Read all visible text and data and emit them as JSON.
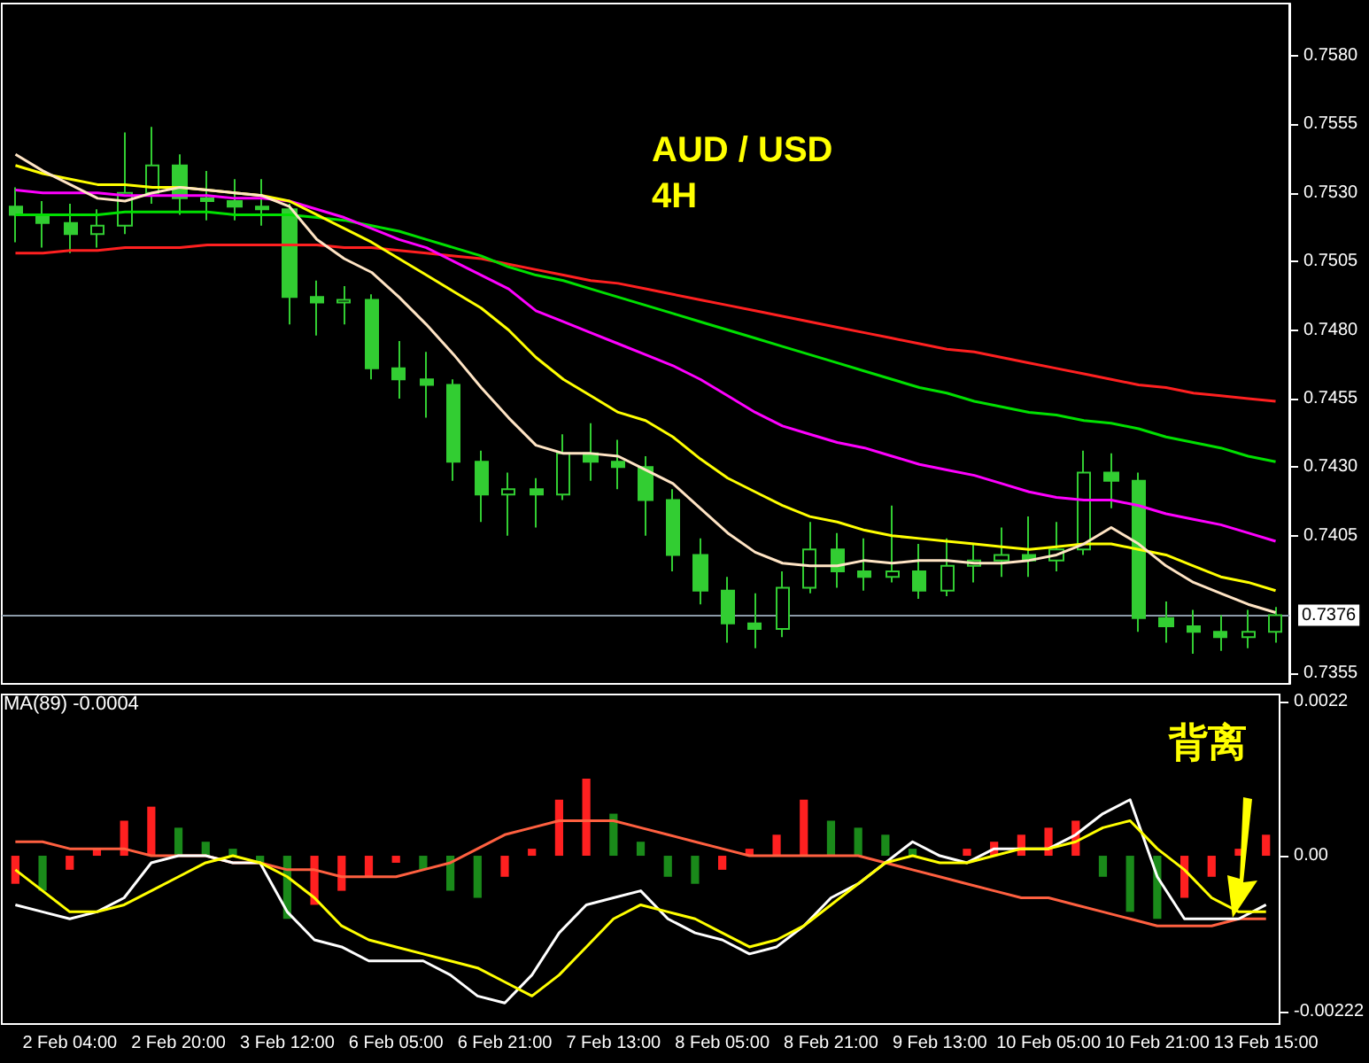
{
  "chart_data": [
    {
      "type": "candlestick",
      "title": "AUD / USD",
      "subtitle": "4H",
      "color": "#32cd32",
      "marker": "none",
      "tick_labels": "y",
      "categories": [
        null,
        null,
        null,
        null,
        null,
        null,
        null,
        null,
        null,
        null,
        null,
        null,
        null,
        null,
        null,
        null,
        null,
        null,
        null,
        null,
        null,
        null,
        null,
        null,
        null,
        null,
        null,
        null,
        null,
        null,
        null,
        null,
        null,
        null,
        null,
        null,
        null,
        null,
        null,
        null,
        null,
        null,
        null,
        null,
        null,
        null,
        null
      ],
      "ohlc": [
        [
          0.7525,
          0.7532,
          0.7512,
          0.7522
        ],
        [
          0.7522,
          0.7527,
          0.751,
          0.7519
        ],
        [
          0.7519,
          0.7526,
          0.7508,
          0.7515
        ],
        [
          0.7515,
          0.7524,
          0.751,
          0.7518
        ],
        [
          0.7518,
          0.7552,
          0.7515,
          0.753
        ],
        [
          0.753,
          0.7554,
          0.7526,
          0.754
        ],
        [
          0.754,
          0.7544,
          0.7522,
          0.7528
        ],
        [
          0.7528,
          0.7538,
          0.752,
          0.7527
        ],
        [
          0.7527,
          0.7535,
          0.752,
          0.7525
        ],
        [
          0.7525,
          0.7535,
          0.7518,
          0.7524
        ],
        [
          0.7524,
          0.7526,
          0.7482,
          0.7492
        ],
        [
          0.7492,
          0.7498,
          0.7478,
          0.749
        ],
        [
          0.749,
          0.7496,
          0.7482,
          0.7491
        ],
        [
          0.7491,
          0.7493,
          0.7462,
          0.7466
        ],
        [
          0.7466,
          0.7476,
          0.7455,
          0.7462
        ],
        [
          0.7462,
          0.7472,
          0.7448,
          0.746
        ],
        [
          0.746,
          0.7462,
          0.7425,
          0.7432
        ],
        [
          0.7432,
          0.7436,
          0.741,
          0.742
        ],
        [
          0.742,
          0.7428,
          0.7405,
          0.7422
        ],
        [
          0.7422,
          0.7426,
          0.7408,
          0.742
        ],
        [
          0.742,
          0.7442,
          0.7418,
          0.7435
        ],
        [
          0.7435,
          0.7446,
          0.7425,
          0.7432
        ],
        [
          0.7432,
          0.744,
          0.7422,
          0.743
        ],
        [
          0.743,
          0.7434,
          0.7405,
          0.7418
        ],
        [
          0.7418,
          0.7422,
          0.7392,
          0.7398
        ],
        [
          0.7398,
          0.7404,
          0.738,
          0.7385
        ],
        [
          0.7385,
          0.739,
          0.7366,
          0.7373
        ],
        [
          0.7373,
          0.7384,
          0.7364,
          0.7371
        ],
        [
          0.7371,
          0.7392,
          0.7368,
          0.7386
        ],
        [
          0.7386,
          0.741,
          0.7384,
          0.74
        ],
        [
          0.74,
          0.7406,
          0.7386,
          0.7392
        ],
        [
          0.7392,
          0.7404,
          0.7385,
          0.739
        ],
        [
          0.739,
          0.7416,
          0.7388,
          0.7392
        ],
        [
          0.7392,
          0.7402,
          0.7382,
          0.7385
        ],
        [
          0.7385,
          0.7404,
          0.7383,
          0.7394
        ],
        [
          0.7394,
          0.7402,
          0.7388,
          0.7396
        ],
        [
          0.7396,
          0.7408,
          0.739,
          0.7398
        ],
        [
          0.7398,
          0.7412,
          0.739,
          0.7396
        ],
        [
          0.7396,
          0.741,
          0.7392,
          0.74
        ],
        [
          0.74,
          0.7436,
          0.7398,
          0.7428
        ],
        [
          0.7428,
          0.7435,
          0.7415,
          0.7425
        ],
        [
          0.7425,
          0.7428,
          0.737,
          0.7375
        ],
        [
          0.7375,
          0.7381,
          0.7366,
          0.7372
        ],
        [
          0.7372,
          0.7378,
          0.7362,
          0.737
        ],
        [
          0.737,
          0.7376,
          0.7363,
          0.7368
        ],
        [
          0.7368,
          0.7378,
          0.7364,
          0.737
        ],
        [
          0.737,
          0.7379,
          0.7366,
          0.7376
        ]
      ],
      "series": [
        {
          "type": "line",
          "color": "#ff2020",
          "values": [
            0.7508,
            0.7508,
            0.7509,
            0.7509,
            0.751,
            0.751,
            0.751,
            0.7511,
            0.7511,
            0.7511,
            0.7511,
            0.7511,
            0.751,
            0.751,
            0.7509,
            0.7508,
            0.7507,
            0.7506,
            0.7504,
            0.7502,
            0.75,
            0.7498,
            0.7497,
            0.7495,
            0.7493,
            0.7491,
            0.7489,
            0.7487,
            0.7485,
            0.7483,
            0.7481,
            0.7479,
            0.7477,
            0.7475,
            0.7473,
            0.7472,
            0.747,
            0.7468,
            0.7466,
            0.7464,
            0.7462,
            0.746,
            0.7459,
            0.7457,
            0.7456,
            0.7455,
            0.7454
          ]
        },
        {
          "type": "line",
          "color": "#00e000",
          "values": [
            0.7522,
            0.7522,
            0.7522,
            0.7522,
            0.7523,
            0.7523,
            0.7523,
            0.7523,
            0.7522,
            0.7522,
            0.7522,
            0.7521,
            0.752,
            0.7518,
            0.7516,
            0.7513,
            0.751,
            0.7507,
            0.7503,
            0.75,
            0.7498,
            0.7495,
            0.7492,
            0.7489,
            0.7486,
            0.7483,
            0.748,
            0.7477,
            0.7474,
            0.7471,
            0.7468,
            0.7465,
            0.7462,
            0.7459,
            0.7457,
            0.7454,
            0.7452,
            0.745,
            0.7449,
            0.7447,
            0.7446,
            0.7444,
            0.7441,
            0.7439,
            0.7437,
            0.7434,
            0.7432
          ]
        },
        {
          "type": "line",
          "color": "#ff00ff",
          "values": [
            0.7531,
            0.753,
            0.753,
            0.753,
            0.7529,
            0.7529,
            0.7529,
            0.7529,
            0.7528,
            0.7528,
            0.7527,
            0.7524,
            0.7521,
            0.7517,
            0.7513,
            0.751,
            0.7505,
            0.75,
            0.7495,
            0.7487,
            0.7483,
            0.7479,
            0.7475,
            0.7471,
            0.7467,
            0.7462,
            0.7456,
            0.745,
            0.7445,
            0.7442,
            0.7439,
            0.7437,
            0.7434,
            0.7431,
            0.7429,
            0.7427,
            0.7424,
            0.7421,
            0.7419,
            0.7418,
            0.7418,
            0.7416,
            0.7413,
            0.7411,
            0.7409,
            0.7406,
            0.7403
          ]
        },
        {
          "type": "line",
          "color": "#ffff00",
          "values": [
            0.754,
            0.7537,
            0.7535,
            0.7533,
            0.7533,
            0.7532,
            0.7532,
            0.7531,
            0.753,
            0.7529,
            0.7527,
            0.7522,
            0.7517,
            0.7512,
            0.7506,
            0.75,
            0.7494,
            0.7488,
            0.748,
            0.747,
            0.7462,
            0.7456,
            0.745,
            0.7447,
            0.7441,
            0.7433,
            0.7426,
            0.7421,
            0.7416,
            0.7412,
            0.741,
            0.7407,
            0.7405,
            0.7404,
            0.7403,
            0.7402,
            0.7401,
            0.74,
            0.7401,
            0.7402,
            0.7402,
            0.74,
            0.7398,
            0.7394,
            0.739,
            0.7388,
            0.7385
          ]
        },
        {
          "type": "line",
          "color": "#ffe4c4",
          "values": [
            0.7544,
            0.7538,
            0.7533,
            0.7528,
            0.7527,
            0.753,
            0.7532,
            0.7531,
            0.753,
            0.7529,
            0.7525,
            0.7513,
            0.7506,
            0.7501,
            0.7492,
            0.7482,
            0.7471,
            0.7459,
            0.7448,
            0.7438,
            0.7435,
            0.7435,
            0.7434,
            0.7429,
            0.7424,
            0.7415,
            0.7406,
            0.7399,
            0.7395,
            0.7394,
            0.7394,
            0.7396,
            0.7395,
            0.7396,
            0.7396,
            0.7395,
            0.7395,
            0.7396,
            0.7398,
            0.7402,
            0.7408,
            0.7402,
            0.7394,
            0.7388,
            0.7384,
            0.738,
            0.7377
          ]
        }
      ],
      "ylim": [
        0.7351,
        0.7599
      ],
      "yticks": [
        {
          "value": 0.7355,
          "label": "0.7355"
        },
        {
          "value": 0.7405,
          "label": "0.7405"
        },
        {
          "value": 0.743,
          "label": "0.7430"
        },
        {
          "value": 0.7455,
          "label": "0.7455"
        },
        {
          "value": 0.748,
          "label": "0.7480"
        },
        {
          "value": 0.7505,
          "label": "0.7505"
        },
        {
          "value": 0.753,
          "label": "0.7530"
        },
        {
          "value": 0.7555,
          "label": "0.7555"
        },
        {
          "value": 0.758,
          "label": "0.7580"
        }
      ],
      "ref_lines": [
        {
          "axis": "y",
          "value": 0.7376,
          "label": "0.7376",
          "color": "#8c9aa8"
        }
      ]
    },
    {
      "type": "bar",
      "marker": "none",
      "annotations": [
        "MA(89) -0.0004",
        "背离"
      ],
      "categories": [
        null,
        null,
        "2 Feb 04:00",
        null,
        null,
        null,
        "2 Feb 20:00",
        null,
        null,
        null,
        "3 Feb 12:00",
        null,
        null,
        null,
        "6 Feb 05:00",
        null,
        null,
        null,
        "6 Feb 21:00",
        null,
        null,
        null,
        "7 Feb 13:00",
        null,
        null,
        null,
        "8 Feb 05:00",
        null,
        null,
        null,
        "8 Feb 21:00",
        null,
        null,
        null,
        "9 Feb 13:00",
        null,
        null,
        null,
        "10 Feb 05:00",
        null,
        null,
        null,
        "10 Feb 21:00",
        null,
        null,
        null,
        "13 Feb 15:00"
      ],
      "series": [
        {
          "type": "bar",
          "colors": [
            "#ff2020",
            "#1a8a1a",
            "#ff2020",
            "#ff2020",
            "#ff2020",
            "#ff2020",
            "#1a8a1a",
            "#1a8a1a",
            "#1a8a1a",
            "#1a8a1a",
            "#1a8a1a",
            "#ff2020",
            "#ff2020",
            "#ff2020",
            "#ff2020",
            "#1a8a1a",
            "#1a8a1a",
            "#1a8a1a",
            "#ff2020",
            "#ff2020",
            "#ff2020",
            "#ff2020",
            "#1a8a1a",
            "#1a8a1a",
            "#1a8a1a",
            "#1a8a1a",
            "#ff2020",
            "#ff2020",
            "#ff2020",
            "#ff2020",
            "#1a8a1a",
            "#1a8a1a",
            "#1a8a1a",
            "#1a8a1a",
            "#1a8a1a",
            "#ff2020",
            "#ff2020",
            "#ff2020",
            "#ff2020",
            "#ff2020",
            "#1a8a1a",
            "#1a8a1a",
            "#1a8a1a",
            "#ff2020",
            "#ff2020",
            "#ff2020",
            "#ff2020"
          ],
          "values": [
            -0.0004,
            -0.0005,
            -0.0002,
            0.0001,
            0.0005,
            0.0007,
            0.0004,
            0.0002,
            0.0001,
            -0.0001,
            -0.0009,
            -0.0007,
            -0.0005,
            -0.0003,
            -0.0001,
            -0.0002,
            -0.0005,
            -0.0006,
            -0.0003,
            0.0001,
            0.0008,
            0.0011,
            0.0006,
            0.0002,
            -0.0003,
            -0.0004,
            -0.0002,
            0.0001,
            0.0003,
            0.0008,
            0.0005,
            0.0004,
            0.0003,
            0.0001,
            0,
            0.0001,
            0.0002,
            0.0003,
            0.0004,
            0.0005,
            -0.0003,
            -0.0008,
            -0.0009,
            -0.0006,
            -0.0003,
            0.0001,
            0.0003
          ]
        },
        {
          "type": "line",
          "color": "#ff6040",
          "values": [
            0.0002,
            0.0002,
            0.0001,
            0.0001,
            0.0001,
            0,
            0,
            0,
            -0.0001,
            -0.0001,
            -0.0002,
            -0.0002,
            -0.0003,
            -0.0003,
            -0.0003,
            -0.0002,
            -0.0001,
            0.0001,
            0.0003,
            0.0004,
            0.0005,
            0.0005,
            0.0005,
            0.0004,
            0.0003,
            0.0002,
            0.0001,
            0,
            0,
            0,
            0,
            0,
            -0.0001,
            -0.0002,
            -0.0003,
            -0.0004,
            -0.0005,
            -0.0006,
            -0.0006,
            -0.0007,
            -0.0008,
            -0.0009,
            -0.001,
            -0.001,
            -0.001,
            -0.0009,
            -0.0009
          ]
        },
        {
          "type": "line",
          "color": "#ffffff",
          "values": [
            -0.0007,
            -0.0008,
            -0.0009,
            -0.0008,
            -0.0006,
            -0.0001,
            0,
            0,
            -0.0001,
            -0.0001,
            -0.0008,
            -0.0012,
            -0.0013,
            -0.0015,
            -0.0015,
            -0.0015,
            -0.0017,
            -0.002,
            -0.0021,
            -0.0017,
            -0.0011,
            -0.0007,
            -0.0006,
            -0.0005,
            -0.0009,
            -0.0011,
            -0.0012,
            -0.0014,
            -0.0013,
            -0.001,
            -0.0006,
            -0.0004,
            -0.0001,
            0.0002,
            0,
            -0.0001,
            0.0001,
            0.0001,
            0.0001,
            0.0003,
            0.0006,
            0.0008,
            -0.0003,
            -0.0009,
            -0.0009,
            -0.0009,
            -0.0007
          ]
        },
        {
          "type": "line",
          "color": "#ffff00",
          "values": [
            -0.0002,
            -0.0005,
            -0.0008,
            -0.0008,
            -0.0007,
            -0.0005,
            -0.0003,
            -0.0001,
            0,
            -0.0001,
            -0.0003,
            -0.0006,
            -0.001,
            -0.0012,
            -0.0013,
            -0.0014,
            -0.0015,
            -0.0016,
            -0.0018,
            -0.002,
            -0.0017,
            -0.0013,
            -0.0009,
            -0.0007,
            -0.0008,
            -0.0009,
            -0.0011,
            -0.0013,
            -0.0012,
            -0.001,
            -0.0007,
            -0.0004,
            -0.0001,
            0,
            -0.0001,
            -0.0001,
            0,
            0.0001,
            0.0001,
            0.0002,
            0.0004,
            0.0005,
            0.0001,
            -0.0002,
            -0.0006,
            -0.0008,
            -0.0008
          ]
        }
      ],
      "ylim": [
        -0.0024,
        0.0023
      ],
      "yticks": [
        {
          "value": 0.0022,
          "label": "0.0022"
        },
        {
          "value": 0,
          "label": "0.00"
        },
        {
          "value": -0.00222,
          "label": "-0.00222"
        }
      ]
    }
  ]
}
